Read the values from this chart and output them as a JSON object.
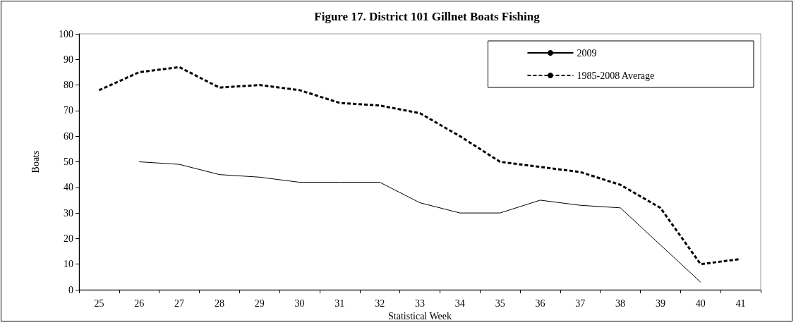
{
  "chart_data": {
    "type": "line",
    "title": "Figure 17. District 101 Gillnet Boats Fishing",
    "xlabel": "Statistical Week",
    "ylabel": "Boats",
    "categories": [
      "25",
      "26",
      "27",
      "28",
      "29",
      "30",
      "31",
      "32",
      "33",
      "34",
      "35",
      "36",
      "37",
      "38",
      "39",
      "40",
      "41"
    ],
    "series": [
      {
        "name": "2009",
        "color": "#000000",
        "line_style": "solid",
        "values": [
          null,
          50,
          49,
          45,
          44,
          42,
          42,
          42,
          34,
          30,
          30,
          35,
          33,
          32,
          17.5,
          3,
          null
        ]
      },
      {
        "name": "1985-2008 Average",
        "color": "#000000",
        "line_style": "dashed",
        "values": [
          78,
          85,
          87,
          79,
          80,
          78,
          73,
          72,
          69,
          60,
          50,
          48,
          46,
          41,
          32,
          10,
          12
        ]
      }
    ],
    "ylim": [
      0,
      100
    ],
    "yticks": [
      0,
      10,
      20,
      30,
      40,
      50,
      60,
      70,
      80,
      90,
      100
    ],
    "grid": false,
    "legend": "top right",
    "marker": "none"
  }
}
